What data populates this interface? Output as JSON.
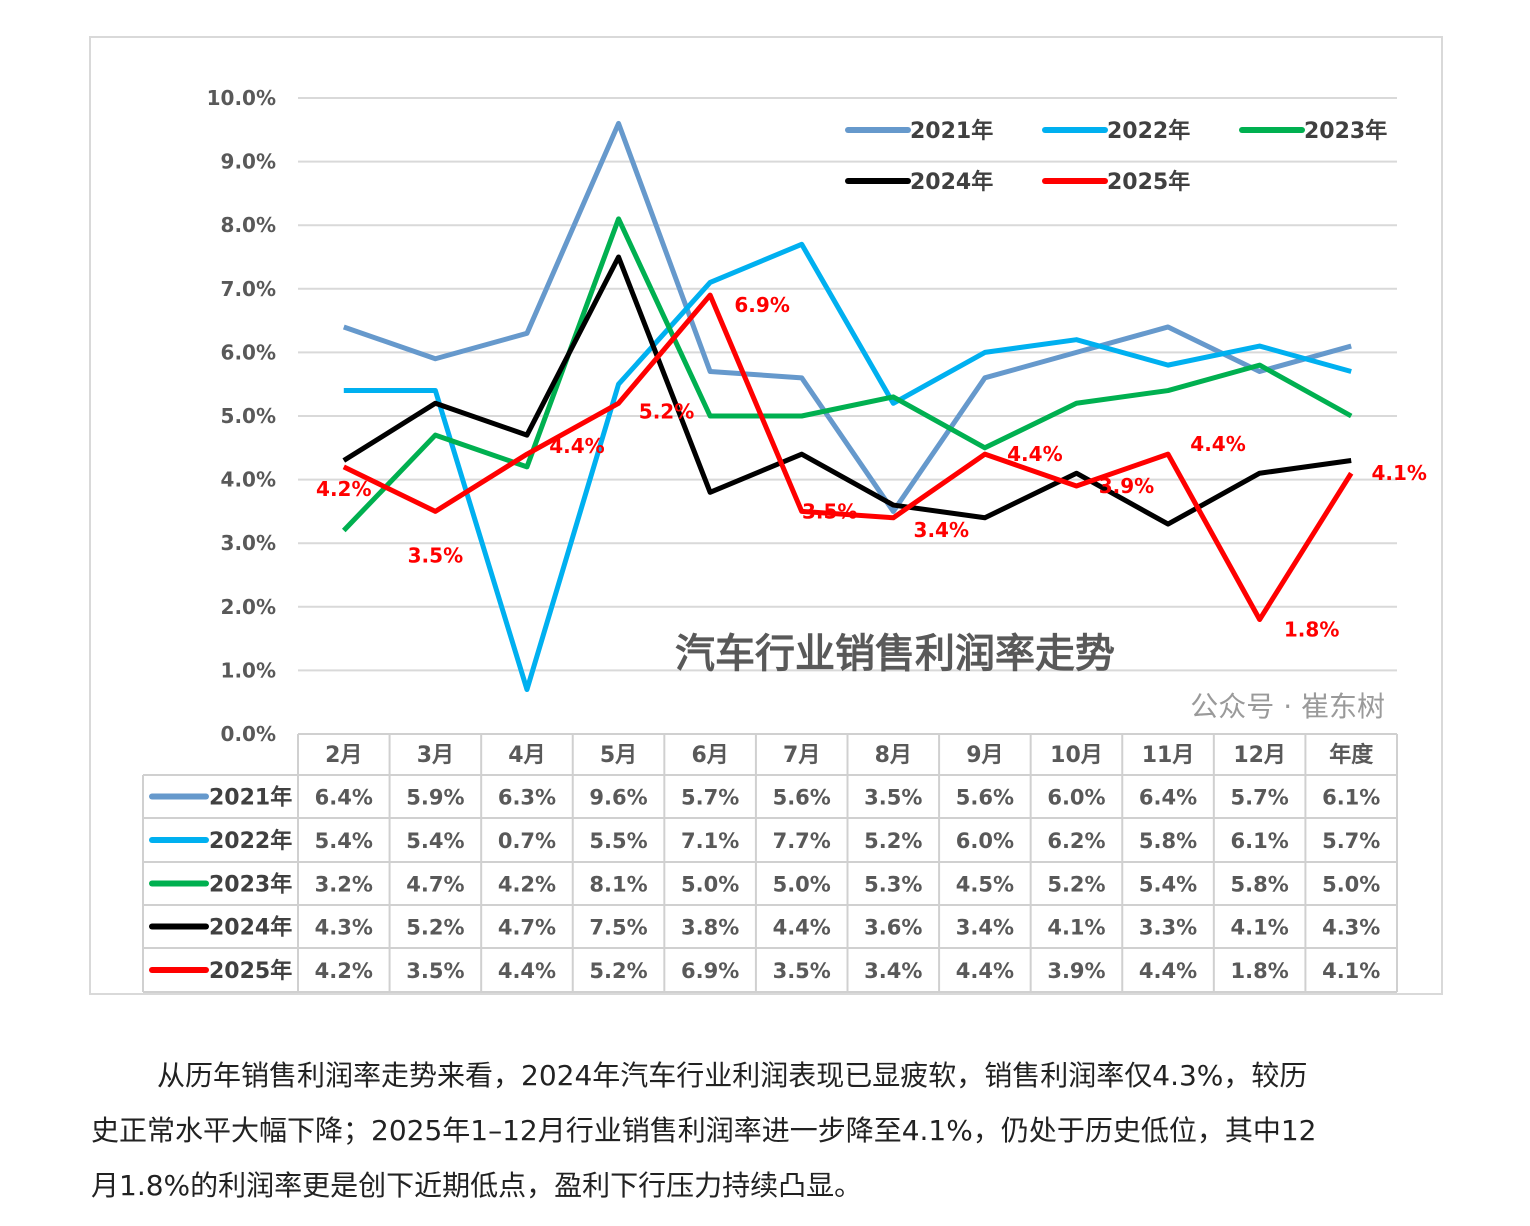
{
  "chart_data": {
    "type": "line",
    "title": "汽车行业销售利润率走势",
    "categories": [
      "2月",
      "3月",
      "4月",
      "5月",
      "6月",
      "7月",
      "8月",
      "9月",
      "10月",
      "11月",
      "12月",
      "年度"
    ],
    "yticks": [
      "0.0%",
      "1.0%",
      "2.0%",
      "3.0%",
      "4.0%",
      "5.0%",
      "6.0%",
      "7.0%",
      "8.0%",
      "9.0%",
      "10.0%"
    ],
    "ylim": [
      0,
      10
    ],
    "grid": true,
    "legend_position": "top-right",
    "series": [
      {
        "name": "2021年",
        "color": "#6699cc",
        "values": [
          6.4,
          5.9,
          6.3,
          9.6,
          5.7,
          5.6,
          3.5,
          5.6,
          6.0,
          6.4,
          5.7,
          6.1
        ],
        "labels": [
          "6.4%",
          "5.9%",
          "6.3%",
          "9.6%",
          "5.7%",
          "5.6%",
          "3.5%",
          "5.6%",
          "6.0%",
          "6.4%",
          "5.7%",
          "6.1%"
        ]
      },
      {
        "name": "2022年",
        "color": "#00b0f0",
        "values": [
          5.4,
          5.4,
          0.7,
          5.5,
          7.1,
          7.7,
          5.2,
          6.0,
          6.2,
          5.8,
          6.1,
          5.7
        ],
        "labels": [
          "5.4%",
          "5.4%",
          "0.7%",
          "5.5%",
          "7.1%",
          "7.7%",
          "5.2%",
          "6.0%",
          "6.2%",
          "5.8%",
          "6.1%",
          "5.7%"
        ]
      },
      {
        "name": "2023年",
        "color": "#00b050",
        "values": [
          3.2,
          4.7,
          4.2,
          8.1,
          5.0,
          5.0,
          5.3,
          4.5,
          5.2,
          5.4,
          5.8,
          5.0
        ],
        "labels": [
          "3.2%",
          "4.7%",
          "4.2%",
          "8.1%",
          "5.0%",
          "5.0%",
          "5.3%",
          "4.5%",
          "5.2%",
          "5.4%",
          "5.8%",
          "5.0%"
        ]
      },
      {
        "name": "2024年",
        "color": "#000000",
        "values": [
          4.3,
          5.2,
          4.7,
          7.5,
          3.8,
          4.4,
          3.6,
          3.4,
          4.1,
          3.3,
          4.1,
          4.3
        ],
        "labels": [
          "4.3%",
          "5.2%",
          "4.7%",
          "7.5%",
          "3.8%",
          "4.4%",
          "3.6%",
          "3.4%",
          "4.1%",
          "3.3%",
          "4.1%",
          "4.3%"
        ]
      },
      {
        "name": "2025年",
        "color": "#ff0000",
        "values": [
          4.2,
          3.5,
          4.4,
          5.2,
          6.9,
          3.5,
          3.4,
          4.4,
          3.9,
          4.4,
          1.8,
          4.1
        ],
        "labels": [
          "4.2%",
          "3.5%",
          "4.4%",
          "5.2%",
          "6.9%",
          "3.5%",
          "3.4%",
          "4.4%",
          "3.9%",
          "4.4%",
          "1.8%",
          "4.1%"
        ],
        "data_labels_shown": true
      }
    ],
    "watermark": "公众号 · 崔东树"
  },
  "article": {
    "lines": [
      "从历年销售利润率走势来看，2024年汽车行业利润表现已显疲软，销售利润率仅4.3%，较历",
      "史正常水平大幅下降；2025年1–12月行业销售利润率进一步降至4.1%，仍处于历史低位，其中12",
      "月1.8%的利润率更是创下近期低点，盈利下行压力持续凸显。"
    ]
  }
}
